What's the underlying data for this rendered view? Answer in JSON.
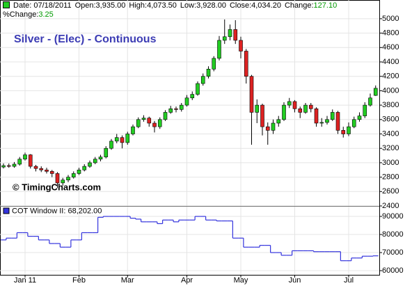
{
  "header": {
    "date": "Date: 07/18/2011",
    "open": "Open:3,935.00",
    "high": "High:4,073.50",
    "low": "Low:3,928.00",
    "close": "Close:4,034.20",
    "change_label": "Change:",
    "change": "127.10",
    "pct_label": "%Change:",
    "pct": "3.25"
  },
  "chart_data": [
    {
      "type": "candlestick",
      "title": "Silver - (Elec) - Continuous",
      "annotation": "© TimingCharts.com",
      "up_color": "#22cc22",
      "down_color": "#dd2222",
      "grid": true,
      "open": [
        2940,
        2960,
        2950,
        2980,
        3050,
        3110,
        2950,
        2920,
        2900,
        2880,
        2850,
        2720,
        2760,
        2800,
        2850,
        2900,
        2950,
        3000,
        3050,
        3080,
        3200,
        3300,
        3350,
        3280,
        3400,
        3500,
        3600,
        3620,
        3550,
        3500,
        3600,
        3700,
        3750,
        3740,
        3800,
        3900,
        3950,
        4100,
        4200,
        4300,
        4450,
        4700,
        4750,
        4850,
        4700,
        4550,
        4200,
        3700,
        3800,
        3500,
        3450,
        3550,
        3600,
        3800,
        3850,
        3750,
        3700,
        3800,
        3750,
        3550,
        3560,
        3600,
        3700,
        3450,
        3400,
        3500,
        3600,
        3650,
        3800,
        3935
      ],
      "high": [
        2990,
        2990,
        3010,
        3080,
        3140,
        3120,
        2970,
        2950,
        2930,
        2900,
        2870,
        2790,
        2830,
        2880,
        2930,
        2980,
        3030,
        3080,
        3110,
        3230,
        3330,
        3400,
        3380,
        3430,
        3530,
        3630,
        3660,
        3640,
        3580,
        3630,
        3730,
        3790,
        3780,
        3830,
        3940,
        3990,
        4130,
        4240,
        4340,
        4480,
        4760,
        4990,
        4920,
        4980,
        4750,
        4580,
        4220,
        3880,
        3820,
        3560,
        3600,
        3650,
        3840,
        3900,
        3870,
        3780,
        3830,
        3830,
        3770,
        3620,
        3650,
        3740,
        3720,
        3500,
        3560,
        3640,
        3700,
        3840,
        3960,
        4073.5
      ],
      "low": [
        2920,
        2930,
        2930,
        2960,
        3030,
        2920,
        2880,
        2870,
        2850,
        2800,
        2650,
        2680,
        2730,
        2780,
        2830,
        2880,
        2930,
        2980,
        3020,
        3060,
        3180,
        3270,
        3200,
        3250,
        3380,
        3480,
        3570,
        3500,
        3420,
        3470,
        3580,
        3680,
        3700,
        3710,
        3780,
        3870,
        3930,
        4070,
        4170,
        4270,
        4420,
        4650,
        4700,
        4650,
        4450,
        4100,
        3250,
        3550,
        3380,
        3250,
        3400,
        3500,
        3580,
        3760,
        3700,
        3620,
        3680,
        3700,
        3500,
        3500,
        3530,
        3580,
        3400,
        3350,
        3370,
        3480,
        3570,
        3620,
        3780,
        3928
      ],
      "close": [
        2960,
        2950,
        2980,
        3050,
        3110,
        2950,
        2920,
        2900,
        2880,
        2850,
        2720,
        2760,
        2800,
        2850,
        2900,
        2950,
        3000,
        3050,
        3080,
        3200,
        3300,
        3350,
        3280,
        3400,
        3500,
        3600,
        3620,
        3550,
        3500,
        3600,
        3700,
        3750,
        3740,
        3800,
        3900,
        3950,
        4100,
        4200,
        4300,
        4450,
        4700,
        4750,
        4850,
        4700,
        4550,
        4200,
        3700,
        3800,
        3500,
        3450,
        3550,
        3600,
        3800,
        3850,
        3750,
        3700,
        3800,
        3750,
        3550,
        3560,
        3600,
        3700,
        3450,
        3400,
        3500,
        3600,
        3650,
        3800,
        3900,
        4034.2
      ],
      "ylim": [
        2400,
        5260
      ],
      "yticks": [
        2400,
        2600,
        2800,
        3000,
        3200,
        3400,
        3600,
        3800,
        4000,
        4200,
        4400,
        4600,
        4800,
        5000
      ]
    },
    {
      "type": "step",
      "series": [
        {
          "name": "COT Window II: 68,202.00",
          "color": "#3333dd",
          "values": [
            77000,
            78000,
            78000,
            81000,
            81000,
            79000,
            79000,
            77000,
            77000,
            75000,
            75000,
            73000,
            73000,
            77000,
            77000,
            81000,
            81000,
            81000,
            89500,
            90000,
            90000,
            90000,
            90000,
            90000,
            89000,
            88500,
            87000,
            87000,
            87000,
            86000,
            88000,
            88000,
            87000,
            88000,
            88000,
            88000,
            90000,
            90000,
            88000,
            88000,
            87500,
            87500,
            87500,
            78000,
            78000,
            73000,
            73000,
            73000,
            74000,
            74000,
            70000,
            70000,
            68500,
            68500,
            71000,
            71000,
            71000,
            71000,
            70500,
            70500,
            70500,
            70500,
            70500,
            65500,
            65500,
            67000,
            67000,
            68000,
            68000,
            68202
          ]
        }
      ],
      "categories": [
        null,
        null,
        null,
        null,
        "Jan 11",
        null,
        null,
        null,
        null,
        null,
        null,
        null,
        null,
        null,
        "Feb",
        null,
        null,
        null,
        null,
        null,
        null,
        null,
        null,
        "Mar",
        null,
        null,
        null,
        null,
        null,
        null,
        null,
        null,
        null,
        null,
        "Apr",
        null,
        null,
        null,
        null,
        null,
        null,
        null,
        null,
        null,
        "May",
        null,
        null,
        null,
        null,
        null,
        null,
        null,
        null,
        null,
        "Jun",
        null,
        null,
        null,
        null,
        null,
        null,
        null,
        null,
        null,
        "Jul",
        null,
        null,
        null,
        null,
        null
      ],
      "ylim": [
        57700,
        95400
      ],
      "yticks": [
        60000,
        70000,
        80000,
        90000
      ],
      "grid": true
    }
  ]
}
